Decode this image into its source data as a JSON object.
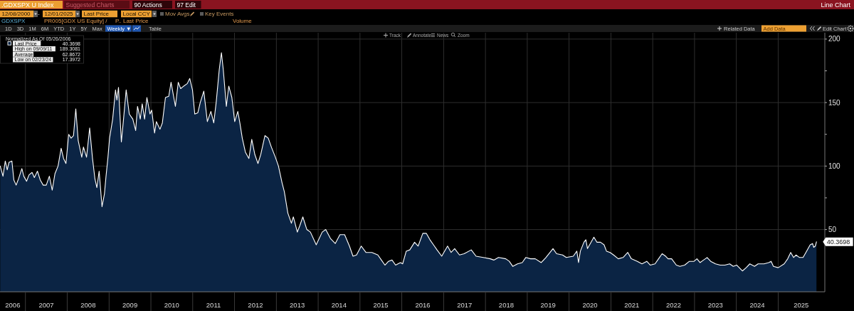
{
  "chart_data": {
    "type": "area",
    "title": ".GDXSPX U Index",
    "legend_title": "Normalized As Of 05/26/2006",
    "legend": "top left",
    "grid": true,
    "annotations": [
      "Suggested Charts",
      "90 Actions",
      "97 Edit",
      "Line Chart",
      "12/08/2000",
      "12/01/2025",
      "Last Price",
      "Local CCY",
      "Mov Avgs",
      "Key Events",
      "GDXSPX",
      "PR005[GDX US Equity] /",
      "P.. Last Price",
      "Volume",
      "1D 3D 1M 6M YTD 1Y 5Y Max",
      "Weekly ▼",
      "Table",
      "Related Data",
      "Add Data",
      "Edit Chart",
      "Track",
      "Annotate",
      "News",
      "Zoom",
      "40.3698",
      "High on 09/09/11",
      "189.3081",
      "Average",
      "62.8672",
      "Low on 02/23/24",
      "17.3972",
      {
        "text": "40.3698",
        "x": "2025-12-01",
        "y": 40.3698
      },
      "-"
    ],
    "xlim": [
      "2006-05-24",
      "2026-02-12"
    ],
    "xticks": [
      {
        "value": "2006-09-12",
        "label": "2006"
      },
      {
        "value": "2007-01-01",
        "label": null
      },
      {
        "value": "2007-07-02",
        "label": "2007"
      },
      {
        "value": "2008-01-01",
        "label": null
      },
      {
        "value": "2008-07-02",
        "label": "2008"
      },
      {
        "value": "2009-01-01",
        "label": null
      },
      {
        "value": "2009-07-02",
        "label": "2009"
      },
      {
        "value": "2010-01-01",
        "label": null
      },
      {
        "value": "2010-07-02",
        "label": "2010"
      },
      {
        "value": "2011-01-01",
        "label": null
      },
      {
        "value": "2011-07-02",
        "label": "2011"
      },
      {
        "value": "2012-01-01",
        "label": null
      },
      {
        "value": "2012-07-02",
        "label": "2012"
      },
      {
        "value": "2013-01-01",
        "label": null
      },
      {
        "value": "2013-07-02",
        "label": "2013"
      },
      {
        "value": "2014-01-01",
        "label": null
      },
      {
        "value": "2014-07-02",
        "label": "2014"
      },
      {
        "value": "2015-01-01",
        "label": null
      },
      {
        "value": "2015-07-02",
        "label": "2015"
      },
      {
        "value": "2016-01-01",
        "label": null
      },
      {
        "value": "2016-07-02",
        "label": "2016"
      },
      {
        "value": "2017-01-01",
        "label": null
      },
      {
        "value": "2017-07-02",
        "label": "2017"
      },
      {
        "value": "2018-01-01",
        "label": null
      },
      {
        "value": "2018-07-02",
        "label": "2018"
      },
      {
        "value": "2019-01-01",
        "label": null
      },
      {
        "value": "2019-07-02",
        "label": "2019"
      },
      {
        "value": "2020-01-01",
        "label": null
      },
      {
        "value": "2020-07-02",
        "label": "2020"
      },
      {
        "value": "2021-01-01",
        "label": null
      },
      {
        "value": "2021-07-02",
        "label": "2021"
      },
      {
        "value": "2022-01-01",
        "label": null
      },
      {
        "value": "2022-07-02",
        "label": "2022"
      },
      {
        "value": "2023-01-01",
        "label": null
      },
      {
        "value": "2023-07-02",
        "label": "2023"
      },
      {
        "value": "2024-01-01",
        "label": null
      },
      {
        "value": "2024-07-02",
        "label": "2024"
      },
      {
        "value": "2025-01-01",
        "label": null
      },
      {
        "value": "2025-07-20",
        "label": "2025"
      }
    ],
    "ylim": [
      1,
      205
    ],
    "yticks": [
      50,
      {
        "value": 75,
        "label": null
      },
      100,
      {
        "value": 125,
        "label": null
      },
      150,
      {
        "value": 175,
        "label": null
      },
      200
    ],
    "series": [
      {
        "name": "Last Price",
        "color": "#0b2444",
        "x": [
          "2006-05-26",
          "2006-06-19",
          "2006-07-09",
          "2006-07-26",
          "2006-08-11",
          "2006-09-05",
          "2006-09-22",
          "2006-10-12",
          "2006-11-02",
          "2006-12-01",
          "2006-12-18",
          "2007-01-11",
          "2007-02-01",
          "2007-02-28",
          "2007-03-20",
          "2007-04-16",
          "2007-05-11",
          "2007-06-05",
          "2007-07-02",
          "2007-07-29",
          "2007-08-23",
          "2007-09-16",
          "2007-10-13",
          "2007-11-09",
          "2007-11-30",
          "2007-12-21",
          "2008-01-14",
          "2008-02-04",
          "2008-02-25",
          "2008-03-16",
          "2008-04-06",
          "2008-05-07",
          "2008-05-22",
          "2008-06-18",
          "2008-07-15",
          "2008-08-09",
          "2008-08-30",
          "2008-09-16",
          "2008-10-06",
          "2008-10-31",
          "2008-11-21",
          "2008-12-05",
          "2008-12-22",
          "2009-01-05",
          "2009-02-01",
          "2009-02-26",
          "2009-03-10",
          "2009-03-24",
          "2009-04-18",
          "2009-05-05",
          "2009-05-30",
          "2009-06-26",
          "2009-07-27",
          "2009-08-21",
          "2009-09-06",
          "2009-09-30",
          "2009-10-17",
          "2009-11-07",
          "2009-11-27",
          "2009-12-24",
          "2010-01-08",
          "2010-02-02",
          "2010-02-18",
          "2010-03-21",
          "2010-04-11",
          "2010-05-08",
          "2010-06-06",
          "2010-06-26",
          "2010-08-03",
          "2010-08-28",
          "2010-09-18",
          "2010-10-15",
          "2010-11-15",
          "2010-12-06",
          "2010-12-30",
          "2011-01-19",
          "2011-02-15",
          "2011-03-08",
          "2011-04-08",
          "2011-05-09",
          "2011-06-09",
          "2011-07-04",
          "2011-07-25",
          "2011-08-21",
          "2011-09-09",
          "2011-09-25",
          "2011-10-22",
          "2011-11-12",
          "2011-12-09",
          "2012-01-03",
          "2012-01-30",
          "2012-02-17",
          "2012-03-09",
          "2012-04-05",
          "2012-05-06",
          "2012-05-31",
          "2012-06-27",
          "2012-07-24",
          "2012-08-17",
          "2012-09-23",
          "2012-10-22",
          "2012-11-18",
          "2012-12-23",
          "2013-01-19",
          "2013-02-19",
          "2013-03-11",
          "2013-04-11",
          "2013-05-12",
          "2013-05-29",
          "2013-07-03",
          "2013-07-24",
          "2013-08-20",
          "2013-09-24",
          "2013-10-25",
          "2013-12-15",
          "2014-02-05",
          "2014-03-08",
          "2014-04-18",
          "2014-05-30",
          "2014-07-10",
          "2014-08-20",
          "2014-10-01",
          "2014-11-01",
          "2014-12-02",
          "2015-01-12",
          "2015-02-22",
          "2015-04-15",
          "2015-06-06",
          "2015-07-07",
          "2015-08-07",
          "2015-09-07",
          "2015-10-08",
          "2015-11-08",
          "2015-12-20",
          "2016-01-09",
          "2016-02-09",
          "2016-03-11",
          "2016-04-22",
          "2016-05-23",
          "2016-07-03",
          "2016-08-03",
          "2016-09-03",
          "2016-10-04",
          "2016-11-04",
          "2016-12-15",
          "2017-02-04",
          "2017-03-07",
          "2017-04-07",
          "2017-05-19",
          "2017-06-29",
          "2017-08-30",
          "2017-10-11",
          "2017-12-12",
          "2018-02-12",
          "2018-03-15",
          "2018-04-25",
          "2018-06-27",
          "2018-07-28",
          "2018-08-28",
          "2018-10-08",
          "2018-11-18",
          "2018-12-19",
          "2019-01-30",
          "2019-03-12",
          "2019-05-03",
          "2019-06-13",
          "2019-08-14",
          "2019-09-14",
          "2019-11-05",
          "2019-12-08",
          "2020-02-07",
          "2020-03-09",
          "2020-03-24",
          "2020-04-09",
          "2020-05-10",
          "2020-05-27",
          "2020-06-10",
          "2020-07-11",
          "2020-08-05",
          "2020-09-01",
          "2020-10-02",
          "2020-11-02",
          "2020-11-23",
          "2020-12-24",
          "2021-01-24",
          "2021-03-06",
          "2021-04-17",
          "2021-05-28",
          "2021-06-28",
          "2021-08-19",
          "2021-09-29",
          "2021-11-10",
          "2021-12-11",
          "2022-01-21",
          "2022-02-21",
          "2022-03-24",
          "2022-04-24",
          "2022-05-15",
          "2022-06-15",
          "2022-07-26",
          "2022-08-26",
          "2022-10-07",
          "2022-11-17",
          "2022-12-28",
          "2023-01-22",
          "2023-02-18",
          "2023-03-21",
          "2023-04-21",
          "2023-05-22",
          "2023-07-03",
          "2023-08-13",
          "2023-09-23",
          "2023-11-04",
          "2023-12-05",
          "2024-01-05",
          "2024-02-23",
          "2024-03-27",
          "2024-04-28",
          "2024-06-08",
          "2024-07-09",
          "2024-08-30",
          "2024-10-10",
          "2024-10-31",
          "2024-11-20",
          "2025-01-01",
          "2025-02-22",
          "2025-03-25",
          "2025-04-20",
          "2025-05-15",
          "2025-06-05",
          "2025-07-06",
          "2025-08-06",
          "2025-09-06",
          "2025-10-07",
          "2025-10-28",
          "2025-11-07",
          "2025-11-21",
          "2025-12-01"
        ],
        "values": [
          100,
          92,
          104,
          97,
          103,
          104,
          89,
          85,
          90,
          98,
          92,
          88,
          93,
          95,
          91,
          96,
          89,
          85,
          85,
          92,
          81,
          94,
          100,
          114,
          106,
          102,
          125,
          122,
          124,
          145,
          120,
          107,
          115,
          107,
          130,
          106,
          90,
          83,
          96,
          68,
          78,
          92,
          107,
          122,
          137,
          160,
          152,
          162,
          119,
          135,
          160,
          141,
          137,
          128,
          147,
          137,
          149,
          137,
          154,
          141,
          144,
          126,
          135,
          129,
          134,
          154,
          155,
          166,
          147,
          166,
          161,
          163,
          165,
          169,
          160,
          141,
          142,
          150,
          159,
          135,
          143,
          134,
          150,
          176,
          189.3081,
          176,
          147,
          163,
          154,
          135,
          143,
          134,
          122,
          111,
          106,
          121,
          109,
          102,
          109,
          124,
          122,
          115,
          107,
          100,
          87,
          80,
          63,
          55,
          60,
          48,
          53,
          60,
          50,
          48,
          38,
          48,
          50,
          43,
          39,
          46,
          46,
          37,
          29,
          30,
          37,
          32,
          32,
          30,
          26,
          22,
          25,
          26,
          22,
          24,
          23,
          33,
          34,
          40,
          37,
          47,
          47,
          42,
          38,
          34,
          29,
          37,
          32,
          35,
          30,
          31,
          34,
          29,
          28,
          27,
          26,
          28,
          27,
          25,
          21,
          23,
          24,
          28,
          27,
          27,
          24,
          28,
          35,
          31,
          30,
          28,
          29,
          33,
          24,
          33,
          40,
          42,
          35,
          40,
          44,
          40,
          40,
          38,
          33,
          32,
          30,
          27,
          28,
          32,
          27,
          25,
          23,
          25,
          22,
          23,
          27,
          31,
          29,
          27,
          27,
          22,
          21,
          22,
          25,
          25,
          27,
          24,
          26,
          28,
          25,
          23,
          22,
          22,
          23,
          21,
          22,
          17.3972,
          20,
          23,
          21,
          23,
          23,
          24,
          25,
          21,
          20,
          23,
          27,
          32,
          28,
          30,
          28,
          28,
          33,
          38,
          39,
          36,
          37,
          40.3698
        ]
      }
    ]
  }
}
